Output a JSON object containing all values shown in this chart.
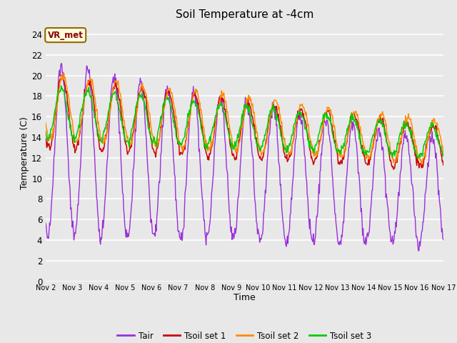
{
  "title": "Soil Temperature at -4cm",
  "xlabel": "Time",
  "ylabel": "Temperature (C)",
  "ylim": [
    0,
    25
  ],
  "yticks": [
    0,
    2,
    4,
    6,
    8,
    10,
    12,
    14,
    16,
    18,
    20,
    22,
    24
  ],
  "plot_bg_color": "#e8e8e8",
  "grid_color": "#ffffff",
  "colors": {
    "Tair": "#9b30d9",
    "Tsoil1": "#cc0000",
    "Tsoil2": "#ff8c00",
    "Tsoil3": "#00cc00"
  },
  "legend_label": "VR_met",
  "xtick_labels": [
    "Nov 2",
    "Nov 3",
    "Nov 4",
    "Nov 5",
    "Nov 6",
    "Nov 7",
    "Nov 8",
    "Nov 9",
    "Nov 10",
    "Nov 11",
    "Nov 12",
    "Nov 13",
    "Nov 14",
    "Nov 15",
    "Nov 16",
    "Nov 17"
  ],
  "n_days": 15,
  "pts_per_day": 48
}
